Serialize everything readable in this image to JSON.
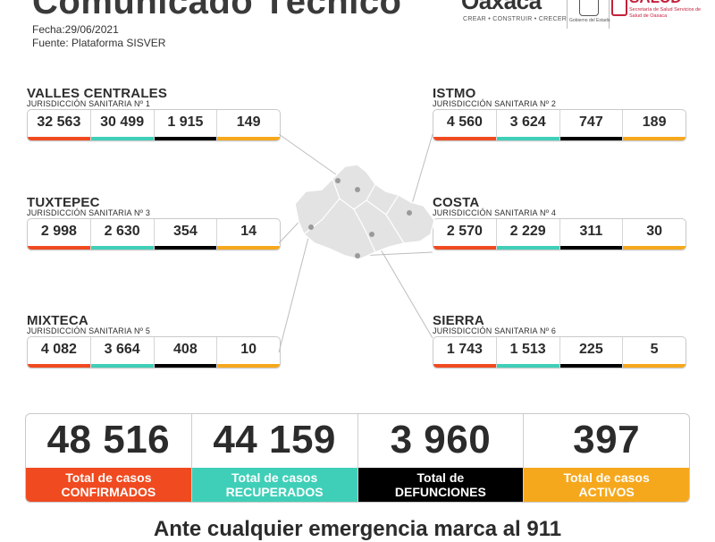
{
  "header": {
    "title": "Comunicado Técnico",
    "date": "Fecha:29/06/2021",
    "source": "Fuente: Plataforma SISVER"
  },
  "logos": {
    "oaxaca_word": "Oaxaca",
    "oaxaca_tagline": "CREAR • CONSTRUIR • CRECER",
    "gov_caption": "Gobierno del Estado",
    "salud_word": "SALUD",
    "salud_sub": "Secretaría de Salud Servicios de Salud de Oaxaca"
  },
  "colors": {
    "confirmed": "#f04a20",
    "recovered": "#3fcfb8",
    "deaths": "#000000",
    "active": "#f6a81d"
  },
  "regions": [
    {
      "name": "VALLES CENTRALES",
      "jurisdiction": "JURISDICCIÓN SANITARIA Nº 1",
      "values": [
        "32 563",
        "30 499",
        "1 915",
        "149"
      ]
    },
    {
      "name": "ISTMO",
      "jurisdiction": "JURISDICCIÓN SANITARIA Nº 2",
      "values": [
        "4 560",
        "3 624",
        "747",
        "189"
      ]
    },
    {
      "name": "TUXTEPEC",
      "jurisdiction": "JURISDICCIÓN SANITARIA Nº 3",
      "values": [
        "2 998",
        "2 630",
        "354",
        "14"
      ]
    },
    {
      "name": "COSTA",
      "jurisdiction": "JURISDICCIÓN SANITARIA Nº 4",
      "values": [
        "2 570",
        "2 229",
        "311",
        "30"
      ]
    },
    {
      "name": "MIXTECA",
      "jurisdiction": "JURISDICCIÓN SANITARIA Nº 5",
      "values": [
        "4 082",
        "3 664",
        "408",
        "10"
      ]
    },
    {
      "name": "SIERRA",
      "jurisdiction": "JURISDICCIÓN SANITARIA Nº 6",
      "values": [
        "1 743",
        "1 513",
        "225",
        "5"
      ]
    }
  ],
  "totals": [
    {
      "value": "48 516",
      "label1": "Total de casos",
      "label2": "CONFIRMADOS"
    },
    {
      "value": "44 159",
      "label1": "Total de casos",
      "label2": "RECUPERADOS"
    },
    {
      "value": "3 960",
      "label1": "Total de",
      "label2": "DEFUNCIONES"
    },
    {
      "value": "397",
      "label1": "Total de casos",
      "label2": "ACTIVOS"
    }
  ],
  "footer": "Ante cualquier emergencia marca al 911"
}
